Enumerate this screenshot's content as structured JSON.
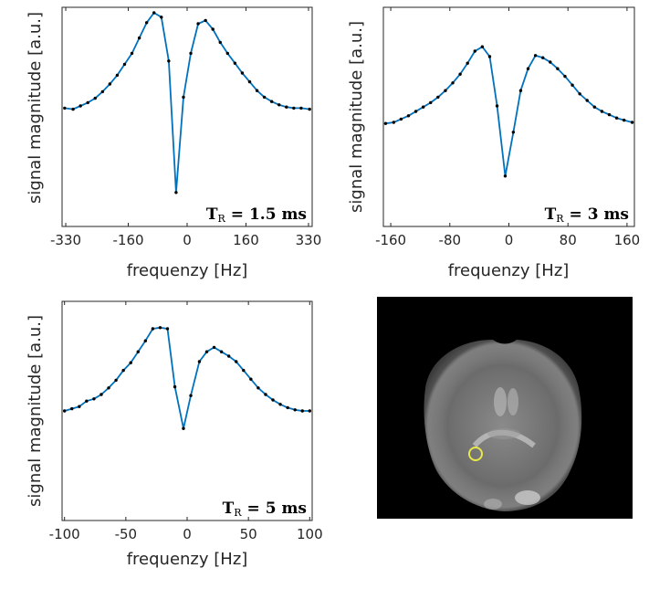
{
  "figure": {
    "ylabel": "signal magnitude [a.u.]",
    "xlabel": "frequenzy [Hz]"
  },
  "chart_data": [
    {
      "type": "line",
      "id": "tr15",
      "annotation": {
        "main": "T",
        "sub": "R",
        "value": "= 1.5 ms"
      },
      "xlim": [
        -340,
        340
      ],
      "ylim": [
        0,
        1
      ],
      "xticks": [
        -330,
        -160,
        0,
        160,
        330
      ],
      "xtick_labels": [
        "-330",
        "-160",
        "0",
        "160",
        "330"
      ],
      "x": [
        -333,
        -310,
        -290,
        -270,
        -250,
        -230,
        -210,
        -190,
        -170,
        -150,
        -130,
        -110,
        -90,
        -70,
        -50,
        -30,
        -10,
        10,
        30,
        50,
        70,
        90,
        110,
        130,
        150,
        170,
        190,
        210,
        230,
        250,
        270,
        290,
        310,
        333
      ],
      "y": [
        0.54,
        0.535,
        0.55,
        0.565,
        0.585,
        0.615,
        0.65,
        0.69,
        0.74,
        0.79,
        0.86,
        0.93,
        0.975,
        0.955,
        0.755,
        0.155,
        0.59,
        0.79,
        0.925,
        0.94,
        0.9,
        0.84,
        0.79,
        0.745,
        0.7,
        0.66,
        0.62,
        0.59,
        0.57,
        0.555,
        0.545,
        0.54,
        0.54,
        0.535
      ],
      "line_color": "#0072BD",
      "marker_color": "#000000"
    },
    {
      "type": "line",
      "id": "tr3",
      "annotation": {
        "main": "T",
        "sub": "R",
        "value": "= 3 ms"
      },
      "xlim": [
        -170,
        170
      ],
      "ylim": [
        0,
        1
      ],
      "xticks": [
        -160,
        -80,
        0,
        80,
        160
      ],
      "xtick_labels": [
        "-160",
        "-80",
        "0",
        "80",
        "160"
      ],
      "x": [
        -167,
        -156,
        -146,
        -136,
        -126,
        -116,
        -106,
        -96,
        -86,
        -76,
        -66,
        -56,
        -46,
        -36,
        -26,
        -16,
        -5,
        6,
        16,
        26,
        36,
        46,
        56,
        66,
        76,
        86,
        96,
        106,
        116,
        126,
        136,
        146,
        156,
        167
      ],
      "y": [
        0.47,
        0.475,
        0.49,
        0.505,
        0.525,
        0.545,
        0.565,
        0.59,
        0.62,
        0.655,
        0.695,
        0.745,
        0.8,
        0.82,
        0.775,
        0.55,
        0.23,
        0.43,
        0.62,
        0.72,
        0.78,
        0.77,
        0.75,
        0.72,
        0.685,
        0.645,
        0.605,
        0.575,
        0.545,
        0.525,
        0.51,
        0.495,
        0.485,
        0.475
      ],
      "line_color": "#0072BD",
      "marker_color": "#000000"
    },
    {
      "type": "line",
      "id": "tr5",
      "annotation": {
        "main": "T",
        "sub": "R",
        "value": "= 5 ms"
      },
      "xlim": [
        -102,
        102
      ],
      "ylim": [
        0,
        1
      ],
      "xticks": [
        -100,
        -50,
        0,
        50,
        100
      ],
      "xtick_labels": [
        "-100",
        "-50",
        "0",
        "50",
        "100"
      ],
      "x": [
        -100,
        -94,
        -88,
        -82,
        -76,
        -70,
        -64,
        -58,
        -52,
        -46,
        -40,
        -34,
        -28,
        -22,
        -16,
        -10,
        -3,
        3,
        10,
        16,
        22,
        28,
        34,
        40,
        46,
        52,
        58,
        64,
        70,
        76,
        82,
        88,
        94,
        100
      ],
      "y": [
        0.5,
        0.51,
        0.52,
        0.545,
        0.555,
        0.575,
        0.605,
        0.64,
        0.685,
        0.72,
        0.77,
        0.82,
        0.875,
        0.88,
        0.875,
        0.61,
        0.42,
        0.57,
        0.725,
        0.77,
        0.79,
        0.77,
        0.75,
        0.725,
        0.685,
        0.645,
        0.605,
        0.575,
        0.55,
        0.53,
        0.515,
        0.505,
        0.5,
        0.5
      ],
      "line_color": "#0072BD",
      "marker_color": "#000000"
    }
  ],
  "image_panel": {
    "marker_color": "#e8e84a",
    "background": "#000000"
  }
}
